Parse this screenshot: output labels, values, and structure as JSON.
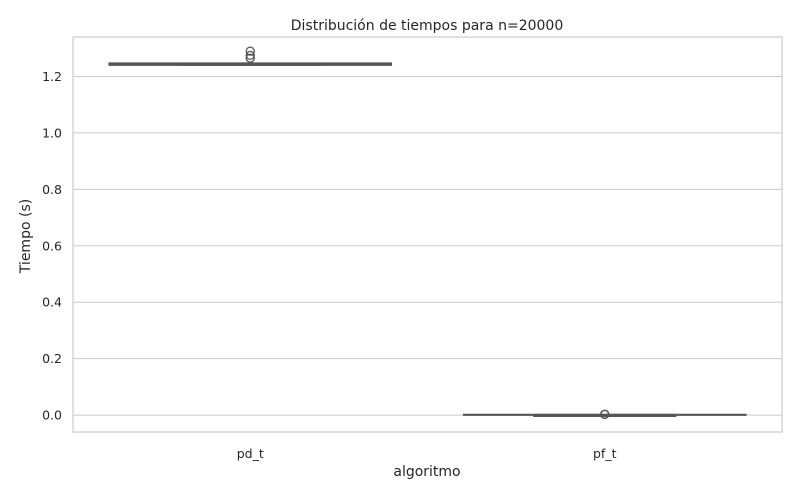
{
  "chart_data": {
    "type": "box",
    "title": "Distribución de tiempos para n=20000",
    "xlabel": "algoritmo",
    "ylabel": "Tiempo (s)",
    "categories": [
      "pd_t",
      "pf_t"
    ],
    "ylim": [
      -0.06,
      1.34
    ],
    "yticks": [
      0.0,
      0.2,
      0.4,
      0.6,
      0.8,
      1.0,
      1.2
    ],
    "ytick_labels": [
      "0.0",
      "0.2",
      "0.4",
      "0.6",
      "0.8",
      "1.0",
      "1.2"
    ],
    "grid": true,
    "boxes": [
      {
        "category": "pd_t",
        "whisker_low": 1.241,
        "q1": 1.242,
        "median": 1.243,
        "q3": 1.246,
        "whisker_high": 1.247,
        "outliers": [
          1.265,
          1.275,
          1.29
        ],
        "color": "#555555"
      },
      {
        "category": "pf_t",
        "whisker_low": 0.0005,
        "q1": 0.0008,
        "median": 0.001,
        "q3": 0.0012,
        "whisker_high": 0.0015,
        "outliers": [
          0.002,
          0.003
        ],
        "color": "#555555"
      }
    ]
  }
}
